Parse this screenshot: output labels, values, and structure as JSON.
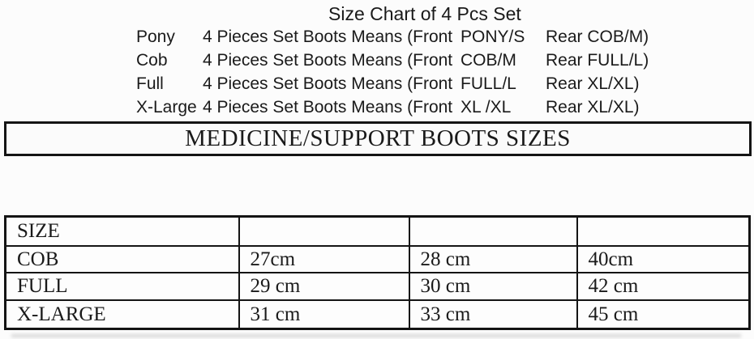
{
  "title": "Size Chart of 4 Pcs Set",
  "set_rows": [
    {
      "label": "Pony",
      "desc": "4 Pieces Set Boots Means (Front",
      "front": "PONY/S",
      "rear": "Rear COB/M)"
    },
    {
      "label": "Cob",
      "desc": "4 Pieces Set Boots Means (Front",
      "front": "COB/M",
      "rear": "Rear FULL/L)"
    },
    {
      "label": "Full",
      "desc": "4 Pieces Set Boots Means (Front",
      "front": "FULL/L",
      "rear": "Rear XL/XL)"
    },
    {
      "label": "X-Large",
      "desc": "4 Pieces Set Boots Means (Front",
      "front": "XL /XL",
      "rear": "Rear XL/XL)"
    }
  ],
  "banner": "MEDICINE/SUPPORT BOOTS SIZES",
  "table": {
    "header": [
      "SIZE",
      "",
      "",
      ""
    ],
    "rows": [
      [
        "COB",
        "27cm",
        "28 cm",
        "40cm"
      ],
      [
        "FULL",
        "29 cm",
        "30 cm",
        "42 cm"
      ],
      [
        "X-LARGE",
        "31 cm",
        "33 cm",
        "45 cm"
      ]
    ]
  },
  "colors": {
    "text": "#1a1a1a",
    "border": "#141414",
    "background": "#fcfcfc"
  },
  "chart_data": {
    "type": "table",
    "title": "MEDICINE/SUPPORT BOOTS SIZES",
    "columns": [
      "SIZE",
      "",
      "",
      ""
    ],
    "rows": [
      [
        "COB",
        "27cm",
        "28 cm",
        "40cm"
      ],
      [
        "FULL",
        "29 cm",
        "30 cm",
        "42 cm"
      ],
      [
        "X-LARGE",
        "31 cm",
        "33 cm",
        "45 cm"
      ]
    ]
  }
}
